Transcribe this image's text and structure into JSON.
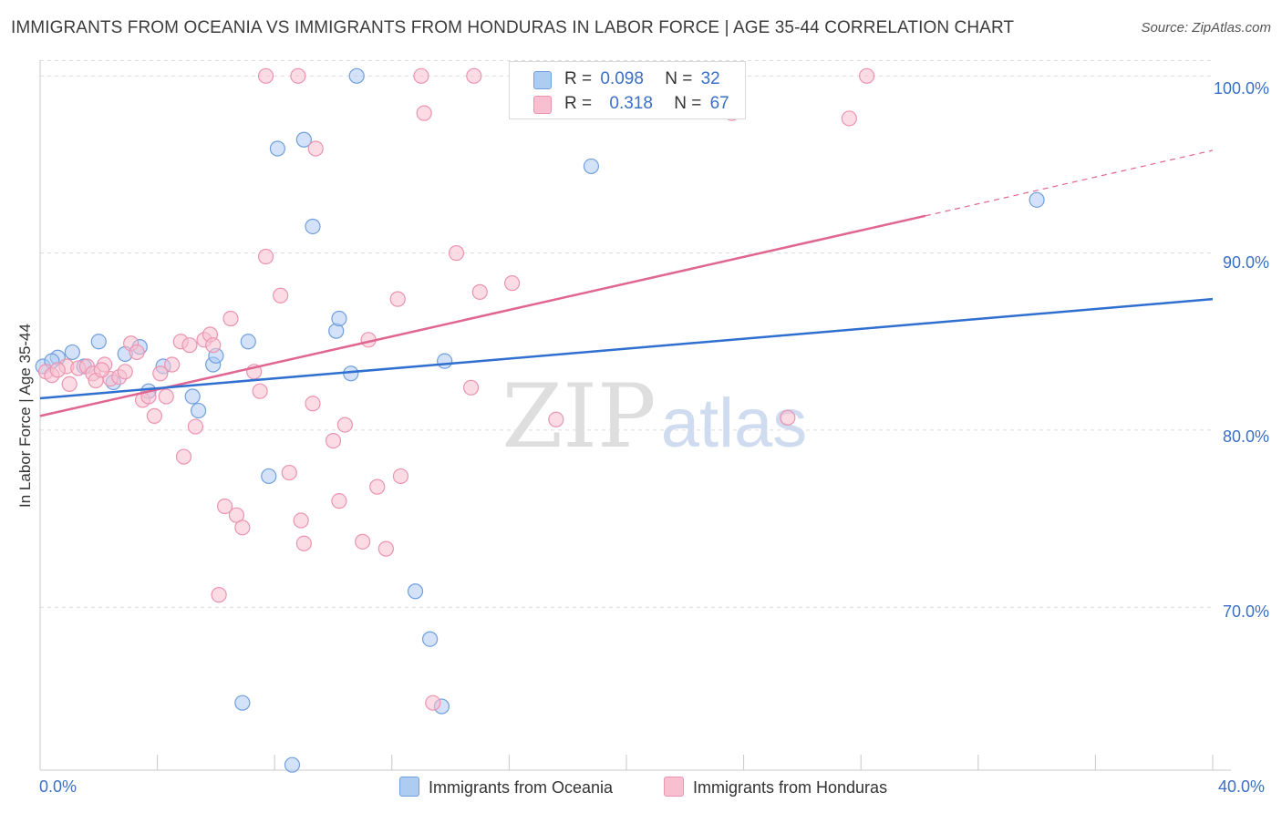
{
  "title": "IMMIGRANTS FROM OCEANIA VS IMMIGRANTS FROM HONDURAS IN LABOR FORCE | AGE 35-44 CORRELATION CHART",
  "source": "Source: ZipAtlas.com",
  "watermark": {
    "zip": "ZIP",
    "atlas": "atlas"
  },
  "colors": {
    "oceania_fill": "#aecbf2",
    "oceania_stroke": "#6f9fde",
    "oceania_line": "#2f6fcf",
    "honduras_fill": "#f7bfd0",
    "honduras_stroke": "#ec93b0",
    "honduras_line": "#e06591",
    "axis_label": "#3a6fc4",
    "grid": "#dcdcdc"
  },
  "legend": {
    "oceania": {
      "r_label": "R =",
      "r_value": "0.098",
      "n_label": "N =",
      "n_value": "32"
    },
    "honduras": {
      "r_label": "R =",
      "r_value": "0.318",
      "n_label": "N =",
      "n_value": "67"
    }
  },
  "chart_data": {
    "type": "scatter",
    "title": "IMMIGRANTS FROM OCEANIA VS IMMIGRANTS FROM HONDURAS IN LABOR FORCE | AGE 35-44 CORRELATION CHART",
    "xlabel": "",
    "ylabel": "In Labor Force | Age 35-44",
    "xlim": [
      0,
      40
    ],
    "ylim": [
      60.8,
      101.2
    ],
    "x_tick_labels": [
      "0.0%",
      "40.0%"
    ],
    "y_ticks": [
      70,
      80,
      90,
      100
    ],
    "y_tick_labels": [
      "70.0%",
      "80.0%",
      "90.0%",
      "100.0%"
    ],
    "grid": true,
    "legend_position": "bottom",
    "series": [
      {
        "name": "Immigrants from Oceania",
        "trend": {
          "x": [
            0,
            40
          ],
          "y": [
            81.8,
            87.4
          ]
        },
        "points": [
          [
            0.1,
            83.6
          ],
          [
            0.6,
            84.1
          ],
          [
            1.1,
            84.4
          ],
          [
            2.0,
            85.0
          ],
          [
            2.5,
            82.7
          ],
          [
            2.9,
            84.3
          ],
          [
            3.4,
            84.7
          ],
          [
            3.7,
            82.2
          ],
          [
            4.2,
            83.6
          ],
          [
            5.2,
            81.9
          ],
          [
            5.4,
            81.1
          ],
          [
            5.9,
            83.7
          ],
          [
            6.0,
            84.2
          ],
          [
            7.1,
            85.0
          ],
          [
            7.8,
            77.4
          ],
          [
            8.1,
            95.9
          ],
          [
            8.6,
            61.1
          ],
          [
            9.0,
            96.4
          ],
          [
            9.3,
            91.5
          ],
          [
            10.1,
            85.6
          ],
          [
            10.2,
            86.3
          ],
          [
            10.6,
            83.2
          ],
          [
            10.8,
            100.0
          ],
          [
            12.8,
            70.9
          ],
          [
            13.3,
            68.2
          ],
          [
            13.7,
            64.4
          ],
          [
            13.8,
            83.9
          ],
          [
            18.8,
            94.9
          ],
          [
            34.0,
            93.0
          ],
          [
            6.9,
            64.6
          ],
          [
            0.4,
            83.9
          ],
          [
            1.5,
            83.6
          ]
        ]
      },
      {
        "name": "Immigrants from Honduras",
        "trend": {
          "x": [
            0,
            30.2
          ],
          "y": [
            80.8,
            92.1
          ]
        },
        "trend_dashed": {
          "x": [
            30.2,
            40
          ],
          "y": [
            92.1,
            95.8
          ]
        },
        "points": [
          [
            0.2,
            83.3
          ],
          [
            0.4,
            83.1
          ],
          [
            0.9,
            83.6
          ],
          [
            1.0,
            82.6
          ],
          [
            1.3,
            83.5
          ],
          [
            1.6,
            83.6
          ],
          [
            1.8,
            83.2
          ],
          [
            1.9,
            82.8
          ],
          [
            2.2,
            83.7
          ],
          [
            2.4,
            82.9
          ],
          [
            2.7,
            83.0
          ],
          [
            2.9,
            83.3
          ],
          [
            3.1,
            84.9
          ],
          [
            3.3,
            84.4
          ],
          [
            3.5,
            81.7
          ],
          [
            3.7,
            81.9
          ],
          [
            3.9,
            80.8
          ],
          [
            4.1,
            83.2
          ],
          [
            4.3,
            81.9
          ],
          [
            4.5,
            83.7
          ],
          [
            4.8,
            85.0
          ],
          [
            4.9,
            78.5
          ],
          [
            5.1,
            84.8
          ],
          [
            5.3,
            80.2
          ],
          [
            5.6,
            85.1
          ],
          [
            5.8,
            85.4
          ],
          [
            5.9,
            84.8
          ],
          [
            6.1,
            70.7
          ],
          [
            6.3,
            75.7
          ],
          [
            6.5,
            86.3
          ],
          [
            6.7,
            75.2
          ],
          [
            6.9,
            74.5
          ],
          [
            7.3,
            83.3
          ],
          [
            7.5,
            82.2
          ],
          [
            7.7,
            89.8
          ],
          [
            8.2,
            87.6
          ],
          [
            8.5,
            77.6
          ],
          [
            8.9,
            74.9
          ],
          [
            9.0,
            73.6
          ],
          [
            9.3,
            81.5
          ],
          [
            9.4,
            95.9
          ],
          [
            7.7,
            100.0
          ],
          [
            8.8,
            100.0
          ],
          [
            10.0,
            79.4
          ],
          [
            10.2,
            76.0
          ],
          [
            10.4,
            80.3
          ],
          [
            11.0,
            73.7
          ],
          [
            11.2,
            85.1
          ],
          [
            11.5,
            76.8
          ],
          [
            11.8,
            73.3
          ],
          [
            12.2,
            87.4
          ],
          [
            12.3,
            77.4
          ],
          [
            13.0,
            100.0
          ],
          [
            13.1,
            97.9
          ],
          [
            13.4,
            64.6
          ],
          [
            14.2,
            90.0
          ],
          [
            14.7,
            82.4
          ],
          [
            14.8,
            100.0
          ],
          [
            15.0,
            87.8
          ],
          [
            16.1,
            88.3
          ],
          [
            17.6,
            80.6
          ],
          [
            23.6,
            97.9
          ],
          [
            25.5,
            80.7
          ],
          [
            27.6,
            97.6
          ],
          [
            28.2,
            100.0
          ],
          [
            0.6,
            83.4
          ],
          [
            2.1,
            83.4
          ]
        ]
      }
    ]
  }
}
